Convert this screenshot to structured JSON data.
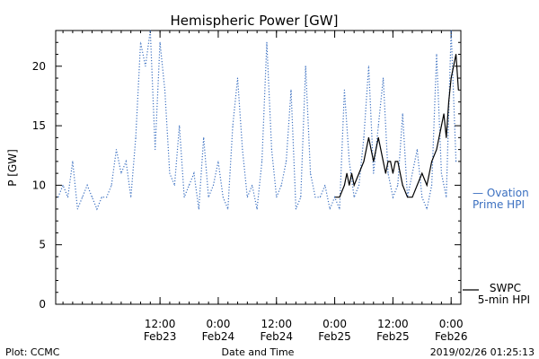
{
  "chart_data": {
    "type": "line",
    "title": "Hemispheric Power [GW]",
    "xlabel": "Date and Time",
    "ylabel": "P [GW]",
    "ylim": [
      0,
      23
    ],
    "yticks": [
      0,
      5,
      10,
      15,
      20
    ],
    "xlim": [
      "2019-02-22T14:30",
      "2019-02-26T02:00"
    ],
    "xticks": [
      {
        "time": "2019-02-23T12:00",
        "label": "12:00",
        "sublabel": "Feb23"
      },
      {
        "time": "2019-02-24T00:00",
        "label": "0:00",
        "sublabel": "Feb24"
      },
      {
        "time": "2019-02-24T12:00",
        "label": "12:00",
        "sublabel": "Feb24"
      },
      {
        "time": "2019-02-25T00:00",
        "label": "0:00",
        "sublabel": "Feb25"
      },
      {
        "time": "2019-02-25T12:00",
        "label": "12:00",
        "sublabel": "Feb25"
      },
      {
        "time": "2019-02-26T00:00",
        "label": "0:00",
        "sublabel": "Feb26"
      }
    ],
    "legend_placement": "right",
    "series": [
      {
        "name": "Ovation Prime HPI",
        "label_lines": [
          "— Ovation",
          "Prime HPI"
        ],
        "color": "#3a6fc0",
        "style": "dotted",
        "x": [
          "2019-02-22T15:00",
          "2019-02-22T16:00",
          "2019-02-22T17:00",
          "2019-02-22T18:00",
          "2019-02-22T19:00",
          "2019-02-22T20:00",
          "2019-02-22T21:00",
          "2019-02-22T22:00",
          "2019-02-22T23:00",
          "2019-02-23T00:00",
          "2019-02-23T01:00",
          "2019-02-23T02:00",
          "2019-02-23T03:00",
          "2019-02-23T04:00",
          "2019-02-23T05:00",
          "2019-02-23T06:00",
          "2019-02-23T07:00",
          "2019-02-23T08:00",
          "2019-02-23T09:00",
          "2019-02-23T10:00",
          "2019-02-23T11:00",
          "2019-02-23T12:00",
          "2019-02-23T13:00",
          "2019-02-23T14:00",
          "2019-02-23T15:00",
          "2019-02-23T16:00",
          "2019-02-23T17:00",
          "2019-02-23T18:00",
          "2019-02-23T19:00",
          "2019-02-23T20:00",
          "2019-02-23T21:00",
          "2019-02-23T22:00",
          "2019-02-23T23:00",
          "2019-02-24T00:00",
          "2019-02-24T01:00",
          "2019-02-24T02:00",
          "2019-02-24T03:00",
          "2019-02-24T04:00",
          "2019-02-24T05:00",
          "2019-02-24T06:00",
          "2019-02-24T07:00",
          "2019-02-24T08:00",
          "2019-02-24T09:00",
          "2019-02-24T10:00",
          "2019-02-24T11:00",
          "2019-02-24T12:00",
          "2019-02-24T13:00",
          "2019-02-24T14:00",
          "2019-02-24T15:00",
          "2019-02-24T16:00",
          "2019-02-24T17:00",
          "2019-02-24T18:00",
          "2019-02-24T19:00",
          "2019-02-24T20:00",
          "2019-02-24T21:00",
          "2019-02-24T22:00",
          "2019-02-24T23:00",
          "2019-02-25T00:00",
          "2019-02-25T01:00",
          "2019-02-25T02:00",
          "2019-02-25T03:00",
          "2019-02-25T04:00",
          "2019-02-25T05:00",
          "2019-02-25T06:00",
          "2019-02-25T07:00",
          "2019-02-25T08:00",
          "2019-02-25T09:00",
          "2019-02-25T10:00",
          "2019-02-25T11:00",
          "2019-02-25T12:00",
          "2019-02-25T13:00",
          "2019-02-25T14:00",
          "2019-02-25T15:00",
          "2019-02-25T16:00",
          "2019-02-25T17:00",
          "2019-02-25T18:00",
          "2019-02-25T19:00",
          "2019-02-25T20:00",
          "2019-02-25T21:00",
          "2019-02-25T22:00",
          "2019-02-25T23:00",
          "2019-02-26T00:00",
          "2019-02-26T01:00"
        ],
        "y": [
          9,
          10,
          9,
          12,
          8,
          9,
          10,
          9,
          8,
          9,
          9,
          10,
          13,
          11,
          12,
          9,
          14,
          22,
          20,
          23,
          13,
          22,
          18,
          11,
          10,
          15,
          9,
          10,
          11,
          8,
          14,
          9,
          10,
          12,
          9,
          8,
          15,
          19,
          13,
          9,
          10,
          8,
          12,
          22,
          13,
          9,
          10,
          12,
          18,
          8,
          9,
          20,
          11,
          9,
          9,
          10,
          8,
          9,
          8,
          18,
          12,
          9,
          10,
          14,
          20,
          11,
          15,
          19,
          11,
          9,
          10,
          16,
          9,
          11,
          13,
          9,
          8,
          10,
          21,
          11,
          9,
          23,
          12
        ]
      },
      {
        "name": "SWPC 5-min HPI",
        "label_lines": [
          "SWPC",
          "5-min HPI"
        ],
        "color": "#000000",
        "style": "solid",
        "x": [
          "2019-02-25T00:10",
          "2019-02-25T01:00",
          "2019-02-25T02:00",
          "2019-02-25T02:30",
          "2019-02-25T03:00",
          "2019-02-25T03:30",
          "2019-02-25T04:00",
          "2019-02-25T05:00",
          "2019-02-25T06:00",
          "2019-02-25T07:00",
          "2019-02-25T07:30",
          "2019-02-25T08:00",
          "2019-02-25T08:30",
          "2019-02-25T09:00",
          "2019-02-25T09:30",
          "2019-02-25T10:00",
          "2019-02-25T10:30",
          "2019-02-25T11:00",
          "2019-02-25T11:30",
          "2019-02-25T12:00",
          "2019-02-25T12:30",
          "2019-02-25T13:00",
          "2019-02-25T14:00",
          "2019-02-25T15:00",
          "2019-02-25T16:00",
          "2019-02-25T17:00",
          "2019-02-25T18:00",
          "2019-02-25T19:00",
          "2019-02-25T20:00",
          "2019-02-25T21:00",
          "2019-02-25T22:00",
          "2019-02-25T22:30",
          "2019-02-25T23:00",
          "2019-02-25T23:30",
          "2019-02-26T00:00",
          "2019-02-26T00:30",
          "2019-02-26T01:00",
          "2019-02-26T01:30"
        ],
        "y": [
          9,
          9,
          10,
          11,
          10,
          11,
          10,
          11,
          12,
          14,
          13,
          12,
          13,
          14,
          13,
          12,
          11,
          12,
          12,
          11,
          12,
          12,
          10,
          9,
          9,
          10,
          11,
          10,
          12,
          13,
          15,
          16,
          14,
          17,
          19,
          20,
          21,
          18
        ]
      }
    ]
  },
  "footer": {
    "left": "Plot: CCMC",
    "center": "Date and Time",
    "right": "2019/02/26 01:25:13"
  }
}
